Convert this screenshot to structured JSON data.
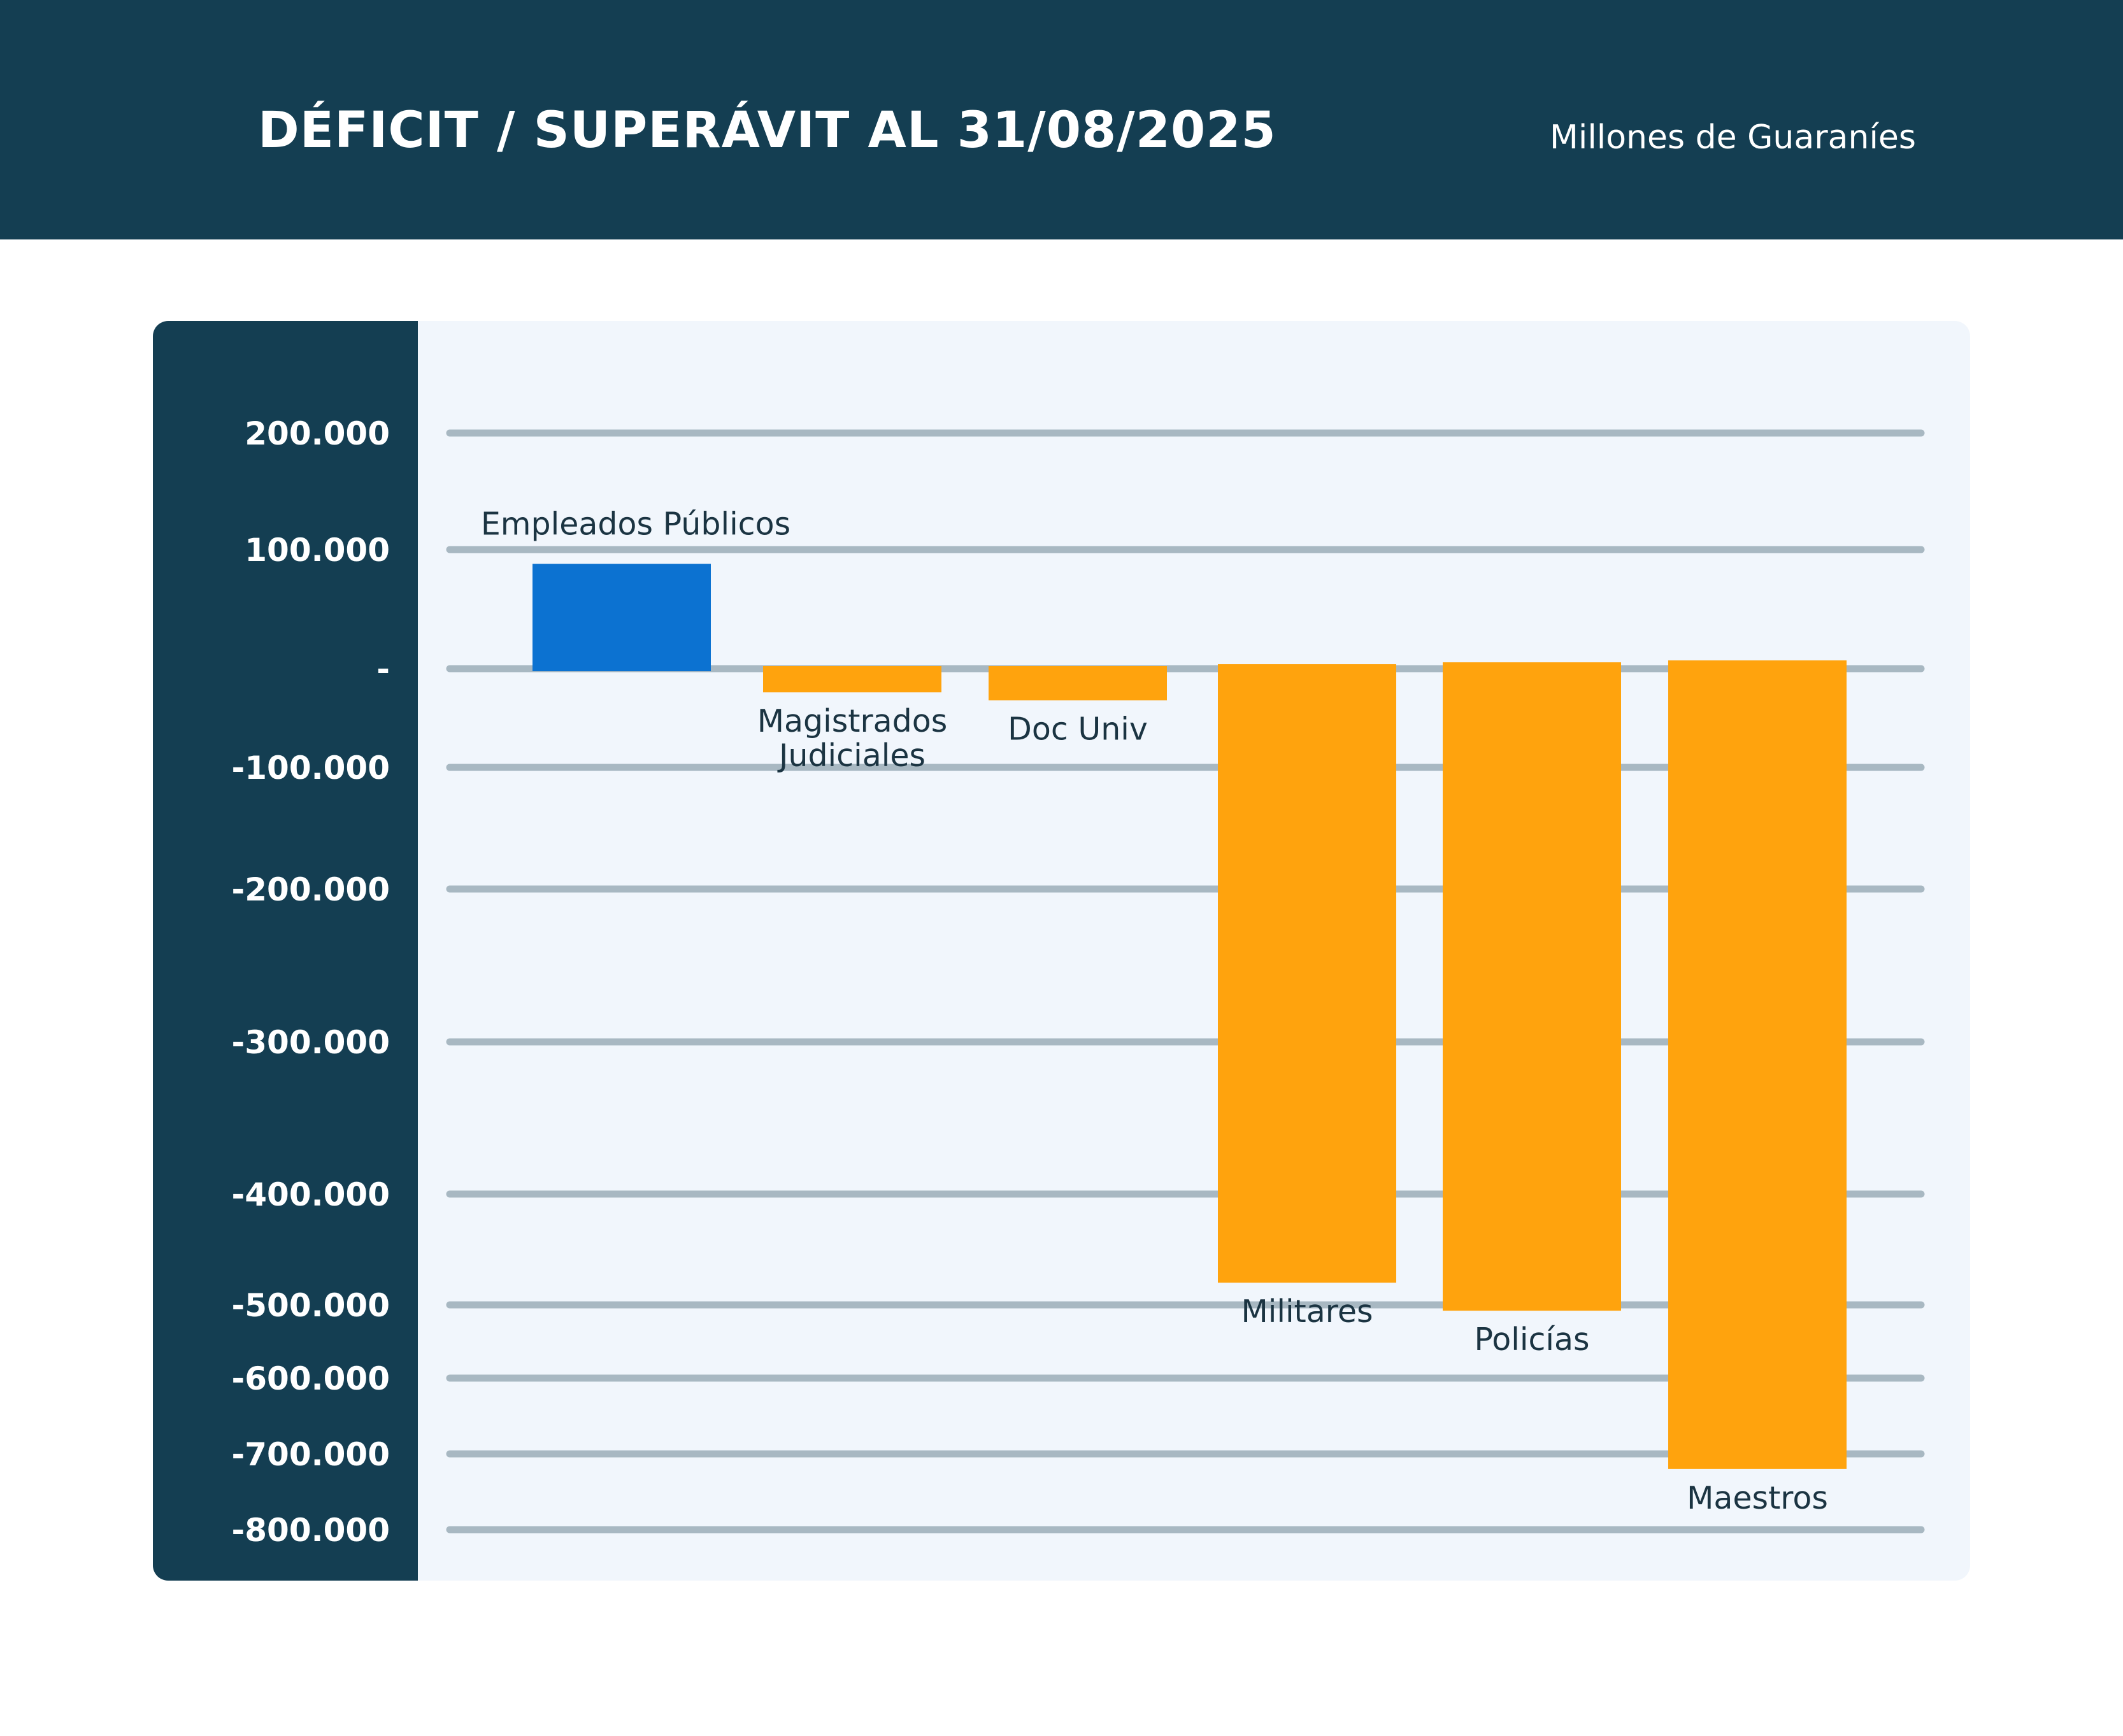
{
  "header": {
    "title": "DÉFICIT / SUPERÁVIT AL 31/08/2025",
    "units": "Millones de Guaraníes"
  },
  "colors": {
    "header_bg": "#143e52",
    "panel_bg": "#f1f6fc",
    "gridline": "#a8b8c2",
    "surplus_bar": "#0c72d1",
    "deficit_bar": "#ffa30d",
    "label_text": "#1b3442"
  },
  "chart_data": {
    "type": "bar",
    "title": "DÉFICIT / SUPERÁVIT AL 31/08/2025",
    "units": "Millones de Guaraníes",
    "categories": [
      "Empleados Públicos",
      "Magistrados Judiciales",
      "Doc Univ",
      "Militares",
      "Policías",
      "Maestros"
    ],
    "category_lines": [
      [
        "Empleados  Públicos"
      ],
      [
        "Magistrados",
        "Judiciales"
      ],
      [
        "Doc Univ"
      ],
      [
        "Militares"
      ],
      [
        "Policías"
      ],
      [
        "Maestros"
      ]
    ],
    "values": [
      88000,
      -24000,
      -32000,
      -480000,
      -508000,
      -720000
    ],
    "yticks": [
      200000,
      100000,
      0,
      -100000,
      -200000,
      -300000,
      -400000,
      -500000,
      -600000,
      -700000,
      -800000
    ],
    "ytick_labels": [
      "200.000",
      "100.000",
      "-",
      "-100.000",
      "-200.000",
      "-300.000",
      "-400.000",
      "-500.000",
      "-600.000",
      "-700.000",
      "-800.000"
    ],
    "ylim": [
      -800000,
      200000
    ],
    "grid": true,
    "legend": "none"
  }
}
